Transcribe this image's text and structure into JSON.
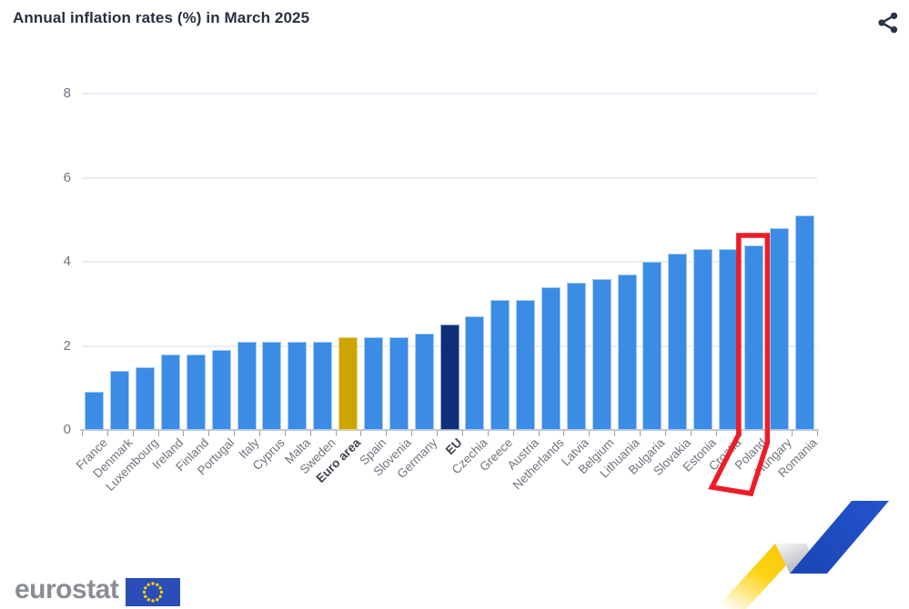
{
  "header": {
    "title": "Annual inflation rates (%) in March 2025",
    "share_icon": "share-icon"
  },
  "chart_data": {
    "type": "bar",
    "title": "Annual inflation rates (%) in March 2025",
    "xlabel": "",
    "ylabel": "",
    "ylim": [
      0,
      8
    ],
    "yticks": [
      0,
      2,
      4,
      6,
      8
    ],
    "grid": true,
    "legend": "none",
    "categories": [
      "France",
      "Denmark",
      "Luxembourg",
      "Ireland",
      "Finland",
      "Portugal",
      "Italy",
      "Cyprus",
      "Malta",
      "Sweden",
      "Euro area",
      "Spain",
      "Slovenia",
      "Germany",
      "EU",
      "Czechia",
      "Greece",
      "Austria",
      "Netherlands",
      "Latvia",
      "Belgium",
      "Lithuania",
      "Bulgaria",
      "Slovakia",
      "Estonia",
      "Croatia",
      "Poland",
      "Hungary",
      "Romania"
    ],
    "values": [
      0.9,
      1.4,
      1.5,
      1.8,
      1.8,
      1.9,
      2.1,
      2.1,
      2.1,
      2.1,
      2.2,
      2.2,
      2.2,
      2.3,
      2.5,
      2.7,
      3.1,
      3.1,
      3.4,
      3.5,
      3.6,
      3.7,
      4.0,
      4.2,
      4.3,
      4.3,
      4.4,
      4.8,
      5.1
    ],
    "emphasized_categories": [
      "Euro area",
      "EU"
    ],
    "annotation": {
      "type": "outline",
      "category": "Poland",
      "color": "#EC1C28"
    }
  },
  "colors": {
    "bar_blue": "#3B8CE4",
    "euro_area_gold": "#CDA400",
    "eu_navy": "#0D2F78",
    "highlight_red": "#EC1C28",
    "title_text": "#28303E",
    "gridline": "#E8EDF5",
    "axis_label_gray": "#6E7480",
    "logo_gray": "#8A8D92",
    "eu_flag_blue": "#2A4DB8",
    "eu_flag_star_yellow": "#FFCC00",
    "ribbon_yellow": "#FDD017",
    "ribbon_blue": "#2050C8",
    "share_icon_navy": "#2B3548"
  },
  "footer": {
    "logo_text": "eurostat",
    "flag_icon": "eu-flag-icon",
    "ribbon_icon": "eurostat-ribbon-icon"
  }
}
